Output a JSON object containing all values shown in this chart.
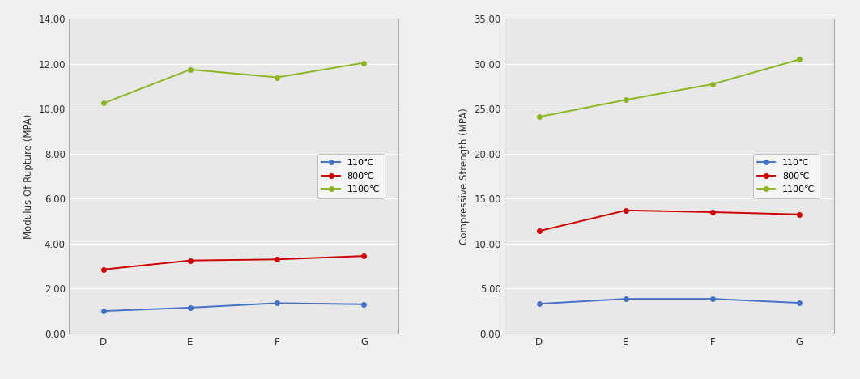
{
  "categories": [
    "D",
    "E",
    "F",
    "G"
  ],
  "chart1": {
    "ylabel": "Modulus Of Rupture (MPA)",
    "ylim": [
      0,
      14.0
    ],
    "yticks": [
      0.0,
      2.0,
      4.0,
      6.0,
      8.0,
      10.0,
      12.0,
      14.0
    ],
    "series": {
      "110C": [
        1.0,
        1.15,
        1.35,
        1.3
      ],
      "800C": [
        2.85,
        3.25,
        3.3,
        3.45
      ],
      "1100C": [
        10.25,
        11.75,
        11.4,
        12.05
      ]
    }
  },
  "chart2": {
    "ylabel": "Compressive Strength (MPA)",
    "ylim": [
      0,
      35.0
    ],
    "yticks": [
      0.0,
      5.0,
      10.0,
      15.0,
      20.0,
      25.0,
      30.0,
      35.0
    ],
    "series": {
      "110C": [
        3.3,
        3.85,
        3.85,
        3.4
      ],
      "800C": [
        11.4,
        13.7,
        13.5,
        13.25
      ],
      "1100C": [
        24.1,
        26.0,
        27.75,
        30.5
      ]
    }
  },
  "colors": {
    "110C": "#4472C4",
    "800C": "#CC0000",
    "1100C": "#8DB523"
  },
  "legend_labels": {
    "110C": "110℃",
    "800C": "800℃",
    "1100C": "1100℃"
  },
  "marker": "o",
  "linewidth": 1.4,
  "markersize": 4,
  "plot_bg_color": "#E8E8E8",
  "fig_bg_color": "#F0F0F0",
  "grid_color": "#FFFFFF",
  "border_color": "#AAAAAA"
}
